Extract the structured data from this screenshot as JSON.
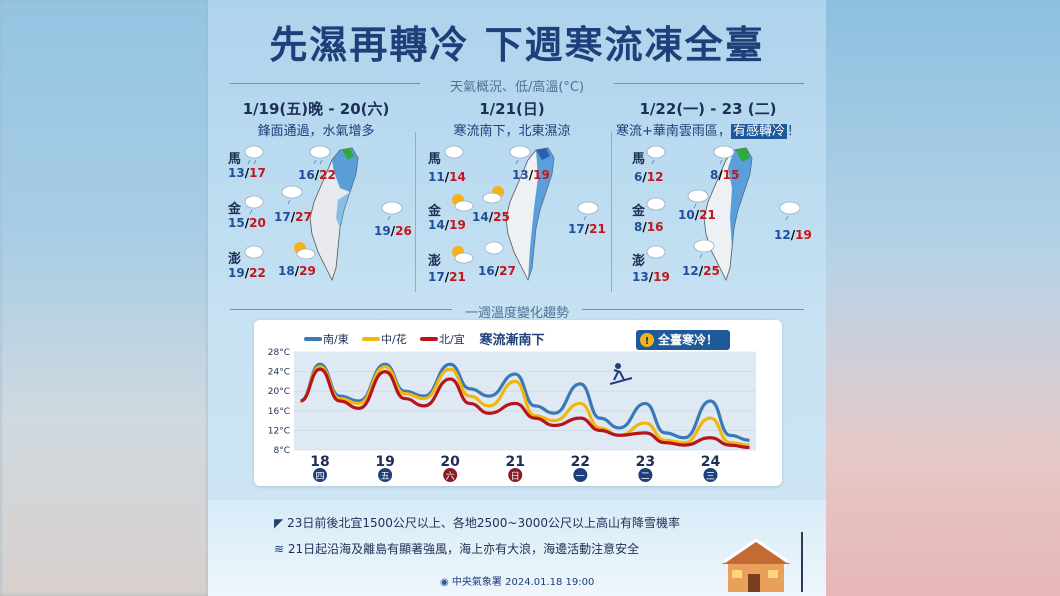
{
  "title": "先濕再轉冷 下週寒流凍全臺",
  "section1": "天氣概況、低/高溫(°C)",
  "section2": "一週溫度變化趨勢",
  "panels": [
    {
      "date": "1/19(五)晚 - 20(六)",
      "desc": "鋒面通過，水氣增多",
      "islands": [
        {
          "name": "馬",
          "lo": "13",
          "hi": "17"
        },
        {
          "name": "金",
          "lo": "15",
          "hi": "20"
        },
        {
          "name": "澎",
          "lo": "19",
          "hi": "22"
        }
      ],
      "regions": [
        {
          "lo": "16",
          "hi": "22"
        },
        {
          "lo": "17",
          "hi": "27"
        },
        {
          "lo": "19",
          "hi": "26"
        },
        {
          "lo": "18",
          "hi": "29"
        }
      ]
    },
    {
      "date": "1/21(日)",
      "desc": "寒流南下，北東濕涼",
      "islands": [
        {
          "name": "馬",
          "lo": "11",
          "hi": "14"
        },
        {
          "name": "金",
          "lo": "14",
          "hi": "19"
        },
        {
          "name": "澎",
          "lo": "17",
          "hi": "21"
        }
      ],
      "regions": [
        {
          "lo": "13",
          "hi": "19"
        },
        {
          "lo": "14",
          "hi": "25"
        },
        {
          "lo": "17",
          "hi": "21"
        },
        {
          "lo": "16",
          "hi": "27"
        }
      ]
    },
    {
      "date": "1/22(一) - 23 (二)",
      "desc_pre": "寒流+華南雲雨區，",
      "desc_hl": "有感轉冷",
      "desc_post": "！",
      "islands": [
        {
          "name": "馬",
          "lo": "6",
          "hi": "12"
        },
        {
          "name": "金",
          "lo": "8",
          "hi": "16"
        },
        {
          "name": "澎",
          "lo": "13",
          "hi": "19"
        }
      ],
      "regions": [
        {
          "lo": "8",
          "hi": "15"
        },
        {
          "lo": "10",
          "hi": "21"
        },
        {
          "lo": "12",
          "hi": "19"
        },
        {
          "lo": "12",
          "hi": "25"
        }
      ]
    }
  ],
  "chart_data": {
    "type": "line",
    "title": "寒流漸南下",
    "badge": "全臺寒冷！",
    "y_ticks": [
      "28°C",
      "24°C",
      "20°C",
      "16°C",
      "12°C",
      "8°C"
    ],
    "ylim": [
      8,
      28
    ],
    "x_days": [
      {
        "num": "18",
        "wd": "四",
        "weekend": false
      },
      {
        "num": "19",
        "wd": "五",
        "weekend": false
      },
      {
        "num": "20",
        "wd": "六",
        "weekend": true
      },
      {
        "num": "21",
        "wd": "日",
        "weekend": true
      },
      {
        "num": "22",
        "wd": "一",
        "weekend": false
      },
      {
        "num": "23",
        "wd": "二",
        "weekend": false
      },
      {
        "num": "24",
        "wd": "三",
        "weekend": false
      }
    ],
    "x": [
      17.7,
      18.0,
      18.3,
      18.6,
      19.0,
      19.3,
      19.6,
      20.0,
      20.3,
      20.6,
      21.0,
      21.3,
      21.6,
      22.0,
      22.3,
      22.6,
      23.0,
      23.3,
      23.6,
      24.0,
      24.3,
      24.6
    ],
    "series": [
      {
        "name": "南/東",
        "color": "#3a78b6",
        "values": [
          18,
          25.5,
          19,
          18,
          25.5,
          20,
          19,
          25.5,
          20.5,
          19,
          23.5,
          17,
          15.5,
          21.5,
          14.5,
          12.5,
          17.5,
          11.5,
          10.5,
          18,
          11,
          10
        ]
      },
      {
        "name": "中/花",
        "color": "#f2b70c",
        "values": [
          18,
          25,
          18.5,
          17.5,
          25,
          19.5,
          18.5,
          24.5,
          19,
          17,
          22,
          15,
          14,
          17.5,
          12.5,
          11,
          13.5,
          10,
          9.5,
          14.5,
          9.5,
          9
        ]
      },
      {
        "name": "北/宜",
        "color": "#b8141b",
        "values": [
          18,
          24.5,
          18,
          16.5,
          24,
          18.5,
          17,
          22.5,
          17.5,
          15.5,
          17.5,
          14.5,
          13,
          14.5,
          12,
          11,
          11.5,
          9.5,
          9,
          10.5,
          9,
          8.5
        ]
      }
    ]
  },
  "notes": [
    "23日前後北宜1500公尺以上、各地2500~3000公尺以上高山有降雪機率",
    "21日起沿海及離島有顯著強風，海上亦有大浪，海邊活動注意安全"
  ],
  "footer": {
    "agency": "中央氣象署",
    "datetime": "2024.01.18  19:00"
  },
  "colors": {
    "title": "#1e3f7a",
    "low": "#1f4f9a",
    "high": "#c0161c",
    "highlight": "#1e5a9a"
  }
}
